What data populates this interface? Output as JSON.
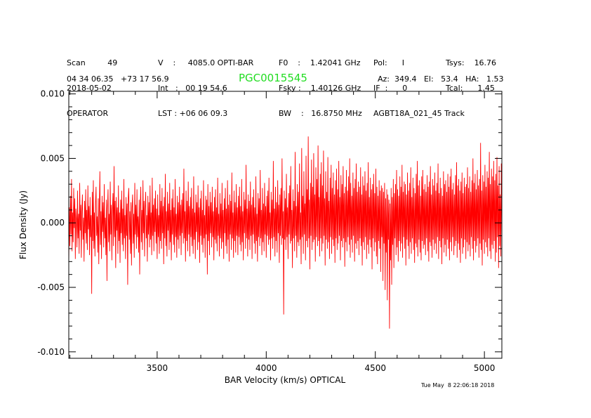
{
  "header": {
    "col1": [
      "Scan         49",
      "2018-05-02",
      "OPERATOR"
    ],
    "col2": [
      "V    :     4085.0 OPTI-BAR",
      "Int   :   00 19 54.6",
      "LST : +06 06 09.3"
    ],
    "col3": [
      "F0    :    1.42041 GHz",
      "Fsky :    1.40126 GHz",
      "BW    :   16.8750 MHz"
    ],
    "col4": [
      "Pol:      I",
      "IF  :      0",
      "AGBT18A_021_45 Track"
    ],
    "col5": [
      "Tsys:    16.76",
      "Tcal:      1.45"
    ],
    "coords": "04 34 06.35   +73 17 56.9",
    "source": "PGC0015545",
    "azel": "Az:  349.4   El:   53.4   HA:   1.53"
  },
  "timestamp": "Tue May  8 22:06:18 2018",
  "colors": {
    "trace": "#ff0000",
    "source": "#22dd22",
    "axes": "#000000"
  },
  "chart_data": {
    "type": "line",
    "xlabel": "BAR Velocity (km/s) OPTICAL",
    "ylabel": "Flux Density (Jy)",
    "xlim": [
      3095,
      5080
    ],
    "ylim": [
      -0.0105,
      0.0102
    ],
    "xticks": [
      3500,
      4000,
      4500,
      5000
    ],
    "xtick_labels": [
      "3500",
      "4000",
      "4500",
      "5000"
    ],
    "yticks": [
      -0.01,
      -0.005,
      0.0,
      0.005,
      0.01
    ],
    "ytick_labels": [
      "-0.010",
      "-0.005",
      "0.000",
      "0.005",
      "0.010"
    ],
    "series": [
      {
        "x_start": 3095,
        "x_end": 5080,
        "values": [
          -0.0031,
          0.0012,
          -0.0018,
          0.0021,
          -0.0009,
          0.0034,
          -0.0022,
          0.0008,
          -0.0015,
          0.0027,
          -0.0004,
          0.0019,
          -0.0028,
          0.0011,
          0.0003,
          -0.0019,
          0.0025,
          -0.0012,
          0.0007,
          -0.0024,
          0.0031,
          -0.0006,
          0.0014,
          -0.0027,
          0.0009,
          0.0022,
          -0.0013,
          0.0004,
          -0.003,
          0.0017,
          -0.0008,
          0.0026,
          -0.0016,
          0.001,
          -0.0021,
          0.0029,
          -0.0005,
          0.0013,
          -0.0025,
          0.002,
          -0.0011,
          0.0006,
          -0.0055,
          0.0024,
          -0.0014,
          0.0033,
          -0.002,
          0.0008,
          -0.0026,
          0.0015,
          0.0028,
          -0.001,
          0.0005,
          -0.0023,
          0.0019,
          -0.0032,
          0.0012,
          0.004,
          -0.0017,
          0.0009,
          -0.0028,
          0.0021,
          -0.0007,
          0.0016,
          -0.0019,
          0.003,
          -0.0012,
          0.0004,
          -0.0025,
          0.0018,
          -0.0045,
          0.0011,
          0.0026,
          -0.0015,
          0.0007,
          -0.0022,
          0.0032,
          -0.0009,
          0.0014,
          -0.0029,
          0.001,
          0.0023,
          -0.0018,
          0.0044,
          -0.0011,
          0.0017,
          -0.0035,
          0.002,
          -0.0006,
          0.0012,
          -0.0024,
          0.0029,
          -0.0014,
          0.0008,
          -0.0031,
          0.0018,
          -0.0008,
          0.0025,
          -0.0017,
          0.0011,
          -0.0022,
          0.0034,
          -0.0012,
          0.0006,
          -0.0028,
          0.002,
          -0.001,
          0.0015,
          -0.0048,
          0.0019,
          0.0027,
          -0.0013,
          0.0009,
          -0.0024,
          0.0016,
          -0.0033,
          0.0012,
          0.0022,
          -0.0016,
          0.0007,
          -0.0027,
          0.0031,
          -0.0009,
          0.0014,
          -0.002,
          0.0026,
          -0.0011,
          0.0005,
          -0.0023,
          0.0018,
          -0.004,
          0.0013,
          0.0028,
          -0.0015,
          0.001,
          -0.0021,
          0.0033,
          -0.0008,
          0.0017,
          -0.0026,
          0.0011,
          0.0024,
          -0.0012,
          0.0006,
          -0.003,
          0.0021,
          -0.0009,
          0.0016,
          -0.0019,
          0.0029,
          -0.0013,
          0.0008,
          -0.0025,
          0.0035,
          -0.001,
          0.0014,
          -0.0022,
          0.0019,
          -0.0007,
          0.0025,
          -0.0016,
          0.0011,
          -0.0028,
          0.0022,
          -0.0011,
          0.0006,
          -0.0024,
          0.003,
          -0.0014,
          0.0017,
          -0.002,
          0.0027,
          -0.0008,
          0.0013,
          -0.0032,
          0.002,
          -0.0012,
          0.0038,
          -0.0018,
          0.0009,
          -0.0026,
          0.0024,
          -0.0006,
          0.0015,
          -0.0021,
          0.0031,
          -0.0015,
          0.001,
          -0.0029,
          0.0019,
          -0.0009,
          0.0026,
          -0.0017,
          0.0012,
          -0.0023,
          0.0034,
          -0.0011,
          0.0007,
          -0.0027,
          0.0021,
          -0.0013,
          0.0016,
          -0.002,
          0.0028,
          -0.001,
          0.0014,
          -0.0025,
          0.0018,
          -0.0008,
          0.0023,
          -0.0016,
          0.0042,
          -0.0012,
          0.0009,
          -0.003,
          0.0025,
          -0.0014,
          0.0017,
          -0.0022,
          0.0032,
          -0.0009,
          0.0013,
          -0.0026,
          0.002,
          -0.0011,
          0.0027,
          -0.0018,
          0.0011,
          -0.0024,
          0.0036,
          -0.0013,
          0.0008,
          -0.0028,
          0.0022,
          -0.0007,
          0.0016,
          -0.0021,
          0.0029,
          -0.0015,
          0.0012,
          -0.0031,
          0.0019,
          -0.001,
          0.0025,
          -0.0017,
          0.001,
          -0.0023,
          0.0033,
          -0.0012,
          0.0006,
          -0.0027,
          0.0021,
          -0.0009,
          0.0018,
          -0.004,
          0.003,
          -0.0014,
          0.0013,
          -0.0025,
          0.0024,
          -0.0008,
          0.0016,
          -0.0019,
          0.0028,
          -0.0011,
          0.0009,
          -0.0029,
          0.002,
          -0.0013,
          0.0026,
          -0.0016,
          0.0012,
          -0.0022,
          0.0035,
          -0.001,
          0.0007,
          -0.0026,
          0.0023,
          -0.0012,
          0.0015,
          -0.002,
          0.0031,
          -0.0015,
          0.001,
          -0.0028,
          0.0019,
          -0.0008,
          0.0027,
          -0.0018,
          0.0011,
          -0.0024,
          0.0033,
          -0.0013,
          0.0014,
          -0.003,
          0.0022,
          -0.0009,
          0.0017,
          -0.0021,
          0.0039,
          -0.0012,
          0.0008,
          -0.0027,
          0.0025,
          -0.0014,
          0.0016,
          -0.0023,
          0.003,
          -0.001,
          0.0012,
          -0.0025,
          0.0021,
          -0.0011,
          0.0028,
          -0.0017,
          0.0013,
          -0.0022,
          0.0034,
          -0.0015,
          0.0009,
          -0.0029,
          0.0024,
          -0.0008,
          0.0018,
          -0.002,
          0.0045,
          -0.0012,
          0.0011,
          -0.0026,
          0.0022,
          -0.0013,
          0.0017,
          -0.0021,
          0.0032,
          -0.001,
          0.0014,
          -0.0028,
          0.002,
          -0.0009,
          0.0026,
          -0.0016,
          0.0012,
          -0.0024,
          0.0036,
          -0.0014,
          0.0007,
          -0.003,
          0.0023,
          -0.0011,
          0.0019,
          -0.0018,
          0.0041,
          -0.0012,
          0.001,
          -0.0025,
          0.0027,
          -0.0015,
          0.0015,
          -0.0022,
          0.0031,
          -0.0009,
          0.0013,
          -0.0027,
          0.0021,
          -0.001,
          0.0025,
          -0.0017,
          0.0035,
          -0.0013,
          0.0008,
          -0.0029,
          0.0024,
          -0.0012,
          0.0018,
          -0.002,
          0.0048,
          -0.0011,
          0.0011,
          -0.0026,
          0.0028,
          -0.0014,
          0.0016,
          -0.0023,
          0.0033,
          -0.0008,
          0.0014,
          -0.0031,
          0.0022,
          -0.001,
          0.0027,
          -0.0017,
          0.005,
          -0.0012,
          0.0009,
          -0.0071,
          0.0025,
          -0.0013,
          0.0019,
          -0.0021,
          0.0038,
          -0.0011,
          0.0012,
          -0.0028,
          0.0023,
          -0.0009,
          0.0029,
          -0.0016,
          0.0044,
          -0.0014,
          0.001,
          -0.0035,
          0.0026,
          -0.0012,
          0.0017,
          -0.0022,
          0.0055,
          -0.001,
          0.0013,
          -0.0027,
          0.003,
          -0.0015,
          0.0024,
          -0.0018,
          0.0046,
          -0.0013,
          0.0008,
          -0.0032,
          0.0058,
          -0.0011,
          0.0021,
          -0.0024,
          0.004,
          -0.0009,
          0.0015,
          -0.0029,
          0.0052,
          -0.0014,
          0.0026,
          -0.0019,
          0.0067,
          -0.0012,
          0.0018,
          -0.0036,
          0.0031,
          -0.001,
          0.0049,
          -0.0021,
          0.0028,
          -0.0015,
          0.0054,
          -0.0013,
          0.0022,
          -0.003,
          0.0043,
          -0.0011,
          0.0034,
          -0.0018,
          0.006,
          -0.0014,
          0.002,
          -0.0026,
          0.0038,
          -0.0012,
          0.0047,
          -0.0022,
          0.0029,
          -0.0016,
          0.0056,
          -0.001,
          0.0019,
          -0.0033,
          0.004,
          -0.0013,
          0.0024,
          -0.002,
          0.0051,
          -0.0015,
          0.0017,
          -0.0028,
          0.0035,
          -0.0011,
          0.0045,
          -0.0024,
          0.0027,
          -0.0013,
          0.0039,
          -0.0018,
          0.0022,
          -0.0031,
          0.0033,
          -0.0012,
          0.0042,
          -0.0021,
          0.0026,
          -0.0016,
          0.0048,
          -0.001,
          0.002,
          -0.0029,
          0.0037,
          -0.0014,
          0.003,
          -0.0019,
          0.0044,
          -0.0012,
          0.0023,
          -0.0034,
          0.0028,
          -0.0015,
          0.0041,
          -0.0022,
          0.0025,
          -0.0011,
          0.0036,
          -0.0017,
          0.005,
          -0.0027,
          0.0031,
          -0.0013,
          0.0021,
          -0.0023,
          0.0039,
          -0.001,
          0.0027,
          -0.003,
          0.0034,
          -0.0016,
          0.0046,
          -0.002,
          0.0024,
          -0.0014,
          0.0032,
          -0.0025,
          0.0028,
          -0.0012,
          0.0043,
          -0.0018,
          0.0022,
          -0.0033,
          0.0036,
          -0.0015,
          0.0029,
          -0.0021,
          0.004,
          -0.0011,
          0.0025,
          -0.0028,
          0.0031,
          -0.0017,
          0.0047,
          -0.0024,
          0.002,
          -0.0013,
          0.0035,
          -0.0019,
          0.0026,
          -0.0036,
          0.003,
          -0.0012,
          0.0038,
          -0.0022,
          0.0023,
          -0.0015,
          0.0042,
          -0.0026,
          0.0028,
          -0.0032,
          0.0021,
          -0.0014,
          0.0033,
          -0.002,
          0.0025,
          -0.0038,
          0.0029,
          -0.0011,
          0.0027,
          -0.0045,
          0.0024,
          -0.0016,
          0.0031,
          -0.0052,
          0.0019,
          -0.0023,
          0.0026,
          -0.006,
          0.0022,
          -0.0013,
          0.0018,
          -0.0082,
          0.0015,
          -0.0029,
          0.0027,
          -0.0048,
          0.002,
          -0.0017,
          0.0034,
          -0.0035,
          0.0023,
          -0.0012,
          0.003,
          -0.0025,
          0.0041,
          -0.0019,
          0.0026,
          -0.003,
          0.0021,
          -0.0014,
          0.0036,
          -0.0022,
          0.0028,
          -0.0016,
          0.0045,
          -0.0027,
          0.0024,
          -0.0011,
          0.0032,
          -0.002,
          0.003,
          -0.0033,
          0.0022,
          -0.0013,
          0.0039,
          -0.0018,
          0.0025,
          -0.0028,
          0.0031,
          -0.0015,
          0.0043,
          -0.0024,
          0.002,
          -0.0012,
          0.0035,
          -0.0021,
          0.0027,
          -0.0031,
          0.0023,
          -0.0016,
          0.0038,
          -0.0019,
          0.0048,
          -0.0026,
          0.0029,
          -0.0013,
          0.0033,
          -0.0023,
          0.0021,
          -0.0029,
          0.0036,
          -0.0014,
          0.0041,
          -0.002,
          0.0026,
          -0.0017,
          0.003,
          -0.0025,
          0.0024,
          -0.0012,
          0.0037,
          -0.0022,
          0.0028,
          -0.003,
          0.0032,
          -0.0015,
          0.0044,
          -0.0018,
          0.0022,
          -0.0027,
          0.0034,
          -0.0013,
          0.0029,
          -0.0021,
          0.0039,
          -0.0016,
          0.0025,
          -0.0024,
          0.0031,
          -0.0011,
          0.0046,
          -0.0028,
          0.0023,
          -0.0014,
          0.0035,
          -0.0019,
          0.0027,
          -0.0032,
          0.0021,
          -0.0012,
          0.004,
          -0.0023,
          0.003,
          -0.0017,
          0.0033,
          -0.0026,
          0.0024,
          -0.0013,
          0.0038,
          -0.002,
          0.0028,
          -0.0029,
          0.0036,
          -0.0015,
          0.0042,
          -0.0022,
          0.0026,
          -0.0011,
          0.0031,
          -0.0025,
          0.0022,
          -0.0018,
          0.0037,
          -0.0014,
          0.0047,
          -0.0027,
          0.0029,
          -0.0016,
          0.0034,
          -0.0021,
          0.0025,
          -0.0031,
          0.0032,
          -0.0012,
          0.0039,
          -0.0024,
          0.0023,
          -0.0019,
          0.0035,
          -0.0013,
          0.0028,
          -0.0028,
          0.003,
          -0.0015,
          0.0043,
          -0.0022,
          0.0027,
          -0.0017,
          0.0036,
          -0.0026,
          0.0024,
          -0.0011,
          0.0033,
          -0.002,
          0.005,
          -0.0029,
          0.0031,
          -0.0014,
          0.0038,
          -0.0023,
          0.0026,
          -0.0018,
          0.0041,
          -0.0012,
          0.0029,
          -0.0027,
          0.0034,
          -0.0016,
          0.0062,
          -0.0021,
          0.0025,
          -0.0033,
          0.0037,
          -0.0013,
          0.0032,
          -0.0024,
          0.0045,
          -0.0015,
          0.0028,
          -0.0019,
          0.004,
          -0.0026,
          0.0035,
          -0.0012,
          0.0055,
          -0.0022,
          0.003,
          -0.0028,
          0.0042,
          -0.0017,
          0.0036,
          -0.002,
          0.0048,
          -0.0014,
          0.0033,
          -0.003,
          0.0038,
          -0.0023,
          0.0051,
          -0.0011,
          0.0029,
          -0.0035,
          0.0044,
          -0.0018,
          0.0022,
          -0.0026,
          0.0046,
          -0.0013
        ]
      }
    ]
  }
}
